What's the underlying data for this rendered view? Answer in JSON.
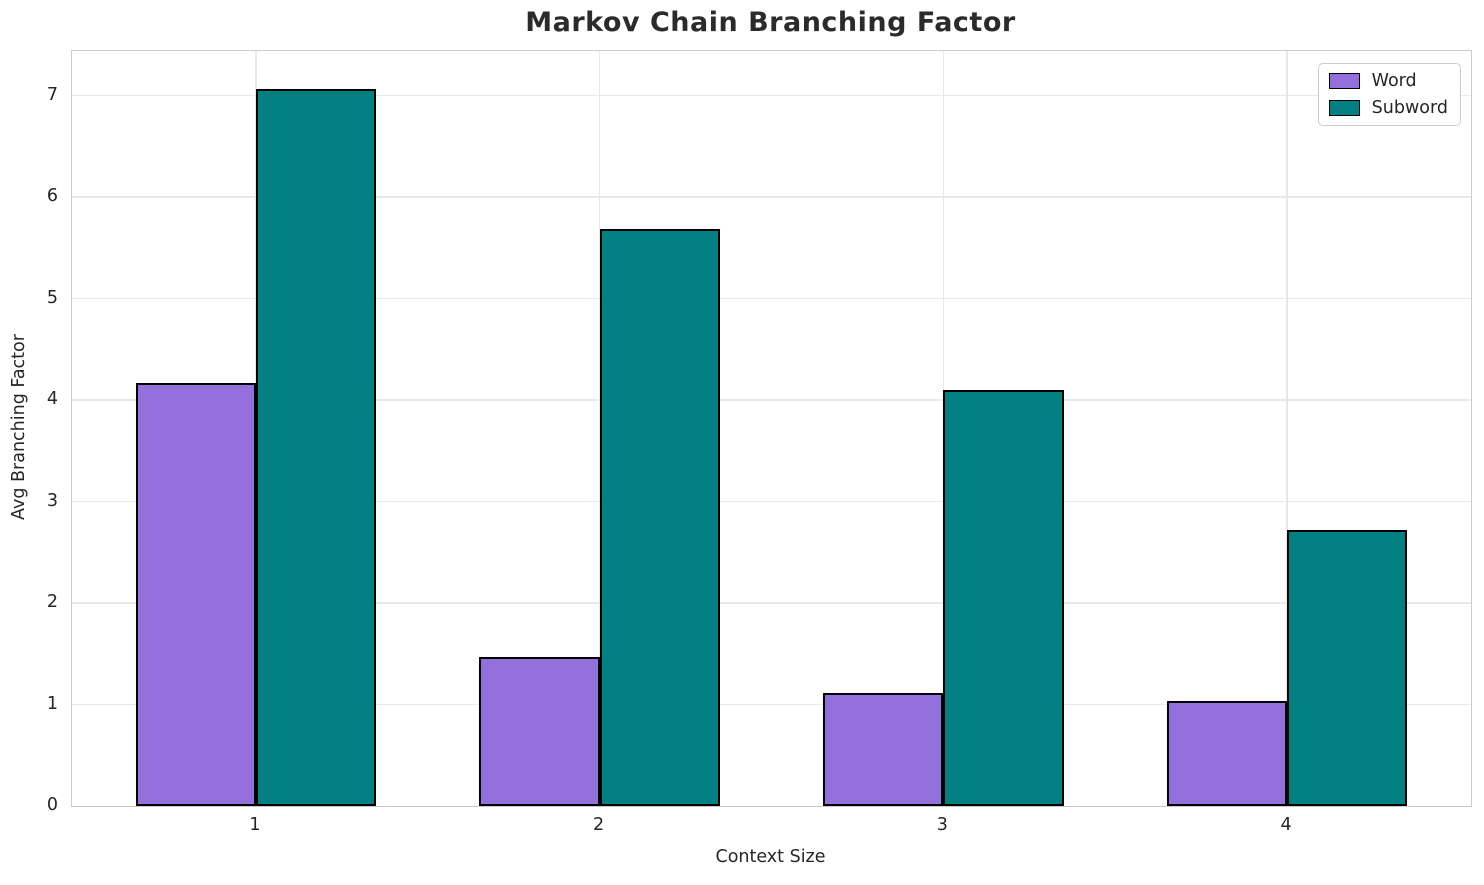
{
  "chart_data": {
    "type": "bar",
    "title": "Markov Chain Branching Factor",
    "xlabel": "Context Size",
    "ylabel": "Avg Branching Factor",
    "categories": [
      "1",
      "2",
      "3",
      "4"
    ],
    "series": [
      {
        "name": "Word",
        "color": "#9370DB",
        "values": [
          4.17,
          1.47,
          1.11,
          1.03
        ]
      },
      {
        "name": "Subword",
        "color": "#008080",
        "values": [
          7.07,
          5.69,
          4.1,
          2.72
        ]
      }
    ],
    "bar_edge_color": "#000000",
    "bar_width": 0.35,
    "x_positions": [
      1,
      2,
      3,
      4
    ],
    "xlim": [
      0.465,
      4.535
    ],
    "ylim": [
      0,
      7.44
    ],
    "yticks": [
      0,
      1,
      2,
      3,
      4,
      5,
      6,
      7
    ],
    "grid": true,
    "grid_color": "#e8e8e8",
    "spine_color": "#cccccc",
    "legend_position": "upper right",
    "background_color": "#ffffff",
    "title_color": "#2b2b2b",
    "tick_label_color": "#262626"
  }
}
